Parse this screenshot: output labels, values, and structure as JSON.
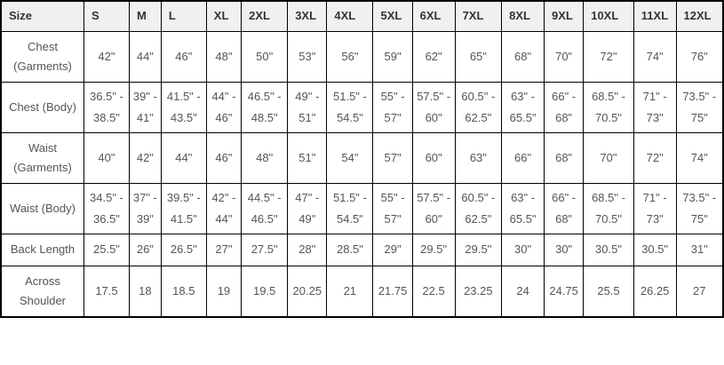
{
  "table": {
    "name": "garment-size-chart",
    "columns": [
      "Size",
      "S",
      "M",
      "L",
      "XL",
      "2XL",
      "3XL",
      "4XL",
      "5XL",
      "6XL",
      "7XL",
      "8XL",
      "9XL",
      "10XL",
      "11XL",
      "12XL"
    ],
    "rows": [
      {
        "label": "Chest (Garments)",
        "values": [
          "42\"",
          "44\"",
          "46\"",
          "48\"",
          "50\"",
          "53\"",
          "56\"",
          "59\"",
          "62\"",
          "65\"",
          "68\"",
          "70\"",
          "72\"",
          "74\"",
          "76\""
        ]
      },
      {
        "label": "Chest (Body)",
        "values": [
          "36.5\" - 38.5\"",
          "39\" - 41\"",
          "41.5\" - 43.5\"",
          "44\" - 46\"",
          "46.5\" - 48.5\"",
          "49\" - 51\"",
          "51.5\" - 54.5\"",
          "55\" - 57\"",
          "57.5\" - 60\"",
          "60.5\" - 62.5\"",
          "63\" - 65.5\"",
          "66\" - 68\"",
          "68.5\" - 70.5\"",
          "71\" - 73\"",
          "73.5\" - 75\""
        ]
      },
      {
        "label": "Waist (Garments)",
        "values": [
          "40\"",
          "42\"",
          "44\"",
          "46\"",
          "48\"",
          "51\"",
          "54\"",
          "57\"",
          "60\"",
          "63\"",
          "66\"",
          "68\"",
          "70\"",
          "72\"",
          "74\""
        ]
      },
      {
        "label": "Waist (Body)",
        "values": [
          "34.5\" - 36.5\"",
          "37\" - 39\"",
          "39.5\" - 41.5\"",
          "42\" - 44\"",
          "44.5\" - 46.5\"",
          "47\" - 49\"",
          "51.5\" - 54.5\"",
          "55\" - 57\"",
          "57.5\" - 60\"",
          "60.5\" - 62.5\"",
          "63\" - 65.5\"",
          "66\" - 68\"",
          "68.5\" - 70.5\"",
          "71\" - 73\"",
          "73.5\" - 75\""
        ]
      },
      {
        "label": "Back Length",
        "values": [
          "25.5\"",
          "26\"",
          "26.5\"",
          "27\"",
          "27.5\"",
          "28\"",
          "28.5\"",
          "29\"",
          "29.5\"",
          "29.5\"",
          "30\"",
          "30\"",
          "30.5\"",
          "30.5\"",
          "31\""
        ]
      },
      {
        "label": "Across Shoulder",
        "values": [
          "17.5",
          "18",
          "18.5",
          "19",
          "19.5",
          "20.25",
          "21",
          "21.75",
          "22.5",
          "23.25",
          "24",
          "24.75",
          "25.5",
          "26.25",
          "27"
        ]
      }
    ],
    "colors": {
      "header_background": "#f0f0f0",
      "border": "#000000",
      "header_text": "#333333",
      "cell_text": "#555555"
    }
  }
}
